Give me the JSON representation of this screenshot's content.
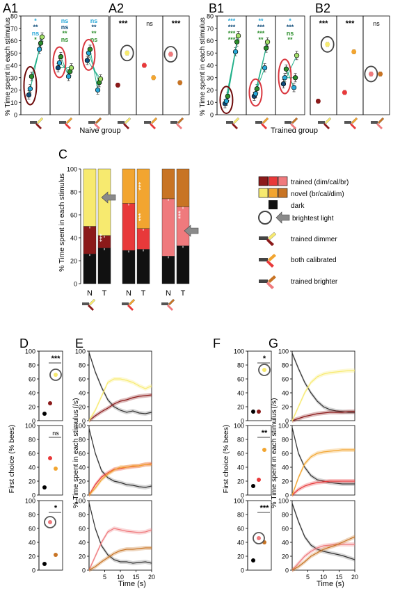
{
  "colors": {
    "dark": "#111111",
    "trained_dimmer_dark": "#8b1a1a",
    "trained_calibrated_red": "#e8393a",
    "trained_brighter_pink": "#ef7a7d",
    "novel_bright_yellow": "#f7ea6f",
    "novel_calibrated_orange": "#f2a530",
    "novel_dim_brown": "#c87424",
    "sig_cyan": "#29a8d8",
    "sig_darkblue": "#0e4b78",
    "sig_green": "#2c8e2c",
    "connector_green": "#22b08a",
    "ellipse_red": "#d9363e",
    "ellipse_darkred": "#6e0b0b",
    "grey_arrow": "#8a8a8a"
  },
  "icons": [
    "arm-stimulus-icon",
    "circle-brightest-icon",
    "grey-arrow-icon"
  ],
  "panels": {
    "A1": "A1",
    "A2": "A2",
    "B1": "B1",
    "B2": "B2",
    "C": "C",
    "D": "D",
    "E": "E",
    "F": "F",
    "G": "G"
  },
  "group_labels": {
    "naive": "Naive group",
    "trained": "Trained group"
  },
  "legend": {
    "trained": "trained  (dim/cal/br)",
    "novel": "novel  (br/cal/dim)",
    "dark": "dark",
    "brightest": "brightest light",
    "trained_dimmer": "trained dimmer",
    "both_calibrated": "both calibrated",
    "trained_brighter": "trained brighter"
  },
  "chart_data": [
    {
      "id": "A1",
      "type": "scatter",
      "ylabel": "% Time spent in each stimulus",
      "ylim": [
        0,
        80
      ],
      "yticks": [
        0,
        10,
        20,
        30,
        40,
        50,
        60,
        70,
        80
      ],
      "groups": [
        {
          "stimulus": "trained dimmer",
          "sig": [
            {
              "text": "*",
              "color": "sig_cyan"
            },
            {
              "text": "**",
              "color": "sig_darkblue"
            },
            {
              "text": "ns",
              "color": "sig_cyan"
            },
            {
              "text": "*",
              "color": "sig_green"
            }
          ],
          "values_trained_early": [
            16,
            21,
            31
          ],
          "values_trained_late": [
            53,
            58,
            63
          ]
        },
        {
          "stimulus": "both calibrated",
          "sig": [
            {
              "text": "ns",
              "color": "sig_cyan"
            },
            {
              "text": "ns",
              "color": "sig_darkblue"
            },
            {
              "text": "**",
              "color": "sig_green"
            },
            {
              "text": "ns",
              "color": "sig_green"
            }
          ],
          "values_trained_early": [
            38,
            42,
            47
          ],
          "values_trained_late": [
            31,
            35,
            38
          ]
        },
        {
          "stimulus": "trained brighter",
          "sig": [
            {
              "text": "ns",
              "color": "sig_cyan"
            },
            {
              "text": "**",
              "color": "sig_darkblue"
            },
            {
              "text": "**",
              "color": "sig_green"
            },
            {
              "text": "ns",
              "color": "sig_green"
            }
          ],
          "values_trained_early": [
            44,
            50,
            53
          ],
          "values_trained_late": [
            20,
            26,
            29
          ]
        }
      ]
    },
    {
      "id": "A2",
      "type": "scatter",
      "ylim": [
        0,
        80
      ],
      "groups": [
        {
          "stimulus": "trained dimmer",
          "sig": "***",
          "trained": 24,
          "novel": 50
        },
        {
          "stimulus": "both calibrated",
          "sig": "ns",
          "trained": 40,
          "novel": 30
        },
        {
          "stimulus": "trained brighter",
          "sig": "***",
          "trained": 49,
          "novel": 26
        }
      ]
    },
    {
      "id": "B1",
      "type": "scatter",
      "ylim": [
        0,
        80
      ],
      "groups": [
        {
          "stimulus": "trained dimmer",
          "sig": [
            {
              "text": "***",
              "color": "sig_cyan"
            },
            {
              "text": "***",
              "color": "sig_darkblue"
            },
            {
              "text": "***",
              "color": "sig_green"
            },
            {
              "text": "***",
              "color": "sig_green"
            }
          ],
          "values_trained_early": [
            9,
            11,
            15
          ],
          "values_trained_late": [
            51,
            59,
            64
          ]
        },
        {
          "stimulus": "both calibrated",
          "sig": [
            {
              "text": "**",
              "color": "sig_cyan"
            },
            {
              "text": "***",
              "color": "sig_darkblue"
            },
            {
              "text": "***",
              "color": "sig_green"
            },
            {
              "text": "**",
              "color": "sig_green"
            }
          ],
          "values_trained_early": [
            15,
            17,
            21
          ],
          "values_trained_late": [
            38,
            54,
            59
          ]
        },
        {
          "stimulus": "trained brighter",
          "sig": [
            {
              "text": "*",
              "color": "sig_cyan"
            },
            {
              "text": "***",
              "color": "sig_darkblue"
            },
            {
              "text": "ns",
              "color": "sig_green"
            },
            {
              "text": "**",
              "color": "sig_green"
            }
          ],
          "values_trained_early": [
            25,
            30,
            37
          ],
          "values_trained_late": [
            22,
            30,
            48
          ]
        }
      ]
    },
    {
      "id": "B2",
      "type": "scatter",
      "ylim": [
        0,
        80
      ],
      "groups": [
        {
          "stimulus": "trained dimmer",
          "sig": "***",
          "trained": 11,
          "novel": 57
        },
        {
          "stimulus": "both calibrated",
          "sig": "***",
          "trained": 18,
          "novel": 51
        },
        {
          "stimulus": "trained brighter",
          "sig": "ns",
          "trained": 33,
          "novel": 33
        }
      ]
    },
    {
      "id": "C",
      "type": "bar",
      "stacked": true,
      "ylabel": "% Time spent in each stimulus",
      "ylim": [
        0,
        100
      ],
      "yticks": [
        0,
        20,
        40,
        60,
        80,
        100
      ],
      "categories": [
        "N",
        "T",
        "N",
        "T",
        "N",
        "T"
      ],
      "series": [
        {
          "name": "dark",
          "values": [
            26,
            31,
            29,
            30,
            24,
            33
          ]
        },
        {
          "name": "trained",
          "values": [
            24,
            11,
            41,
            18,
            50,
            34
          ]
        },
        {
          "name": "novel",
          "values": [
            50,
            58,
            30,
            52,
            26,
            33
          ]
        }
      ],
      "sig": [
        "***",
        "***",
        "***",
        "***",
        "***",
        "***"
      ]
    },
    {
      "id": "D",
      "type": "scatter",
      "ylabel": "First choice (% bees)",
      "ylim": [
        0,
        100
      ],
      "rows": [
        {
          "stimulus": "trained dimmer",
          "sig": "***",
          "dark": 10,
          "trained": 25,
          "novel": 66
        },
        {
          "stimulus": "both calibrated",
          "sig": "ns",
          "dark": 11,
          "trained": 53,
          "novel": 38
        },
        {
          "stimulus": "trained brighter",
          "sig": "*",
          "dark": 9,
          "trained": 69,
          "novel": 22
        }
      ]
    },
    {
      "id": "E",
      "type": "line",
      "xlabel": "Time (s)",
      "ylabel": "% Time spent in each stimulus  (/s)",
      "xlim": [
        0,
        20
      ],
      "xticks": [
        5,
        10,
        15,
        20
      ],
      "ylim": [
        0,
        100
      ],
      "rows": [
        {
          "x": [
            0,
            2,
            4,
            6,
            8,
            10,
            12,
            14,
            16,
            18,
            20
          ],
          "dark": [
            98,
            70,
            48,
            30,
            20,
            15,
            12,
            14,
            11,
            10,
            12
          ],
          "trained": [
            0,
            7,
            13,
            18,
            24,
            28,
            30,
            33,
            35,
            36,
            37
          ],
          "novel": [
            0,
            15,
            35,
            55,
            60,
            60,
            58,
            55,
            50,
            46,
            50
          ]
        },
        {
          "x": [
            0,
            2,
            4,
            6,
            8,
            10,
            12,
            14,
            16,
            18,
            20
          ],
          "dark": [
            96,
            60,
            35,
            25,
            20,
            18,
            15,
            14,
            12,
            11,
            13
          ],
          "trained": [
            0,
            15,
            26,
            32,
            37,
            38,
            40,
            41,
            42,
            44,
            45
          ],
          "novel": [
            0,
            10,
            22,
            30,
            36,
            40,
            40,
            42,
            42,
            44,
            44
          ]
        },
        {
          "x": [
            0,
            2,
            4,
            6,
            8,
            10,
            12,
            14,
            16,
            18,
            20
          ],
          "dark": [
            97,
            60,
            35,
            22,
            15,
            12,
            12,
            10,
            11,
            12,
            10
          ],
          "trained": [
            0,
            20,
            40,
            55,
            60,
            58,
            56,
            55,
            54,
            55,
            58
          ],
          "novel": [
            0,
            5,
            12,
            18,
            24,
            28,
            30,
            30,
            31,
            32,
            32
          ]
        }
      ]
    },
    {
      "id": "F",
      "type": "scatter",
      "ylabel": "First choice (% bees)",
      "ylim": [
        0,
        100
      ],
      "rows": [
        {
          "stimulus": "trained dimmer",
          "sig": "*",
          "dark": 13,
          "trained": 13,
          "novel": 73
        },
        {
          "stimulus": "both calibrated",
          "sig": "**",
          "dark": 13,
          "trained": 22,
          "novel": 65
        },
        {
          "stimulus": "trained brighter",
          "sig": "***",
          "dark": 14,
          "trained": 46,
          "novel": 40
        }
      ]
    },
    {
      "id": "G",
      "type": "line",
      "xlabel": "Time (s)",
      "ylabel": "% Time spent in each stimulus  (/s)",
      "xlim": [
        0,
        20
      ],
      "xticks": [
        5,
        10,
        15,
        20
      ],
      "ylim": [
        0,
        100
      ],
      "rows": [
        {
          "x": [
            0,
            2,
            4,
            6,
            8,
            10,
            12,
            14,
            16,
            18,
            20
          ],
          "dark": [
            97,
            75,
            55,
            40,
            28,
            20,
            16,
            14,
            13,
            12,
            12
          ],
          "trained": [
            0,
            3,
            6,
            8,
            10,
            11,
            12,
            12,
            12,
            13,
            13
          ],
          "novel": [
            0,
            20,
            40,
            55,
            63,
            67,
            69,
            70,
            71,
            72,
            72
          ]
        },
        {
          "x": [
            0,
            2,
            4,
            6,
            8,
            10,
            12,
            14,
            16,
            18,
            20
          ],
          "dark": [
            97,
            60,
            40,
            28,
            22,
            20,
            18,
            17,
            16,
            16,
            16
          ],
          "trained": [
            0,
            8,
            13,
            16,
            18,
            19,
            20,
            20,
            20,
            20,
            20
          ],
          "novel": [
            0,
            25,
            45,
            55,
            60,
            62,
            63,
            64,
            65,
            65,
            65
          ]
        },
        {
          "x": [
            0,
            2,
            4,
            6,
            8,
            10,
            12,
            14,
            16,
            18,
            20
          ],
          "dark": [
            96,
            70,
            48,
            36,
            30,
            27,
            25,
            23,
            21,
            18,
            15
          ],
          "trained": [
            0,
            10,
            20,
            27,
            32,
            35,
            36,
            37,
            37,
            37,
            37
          ],
          "novel": [
            0,
            5,
            12,
            20,
            25,
            30,
            33,
            36,
            40,
            44,
            48
          ]
        }
      ]
    }
  ],
  "texts": {
    "c_group_labels": [
      "N",
      "T",
      "N",
      "T",
      "N",
      "T"
    ],
    "time_label": "Time (s)",
    "ylabel_time": "% Time spent in each stimulus",
    "ylabel_time_unit": "(/s)",
    "ylabel_first": "First choice (% bees)",
    "ylabel_pct": "% Time spent in each stimulus"
  }
}
